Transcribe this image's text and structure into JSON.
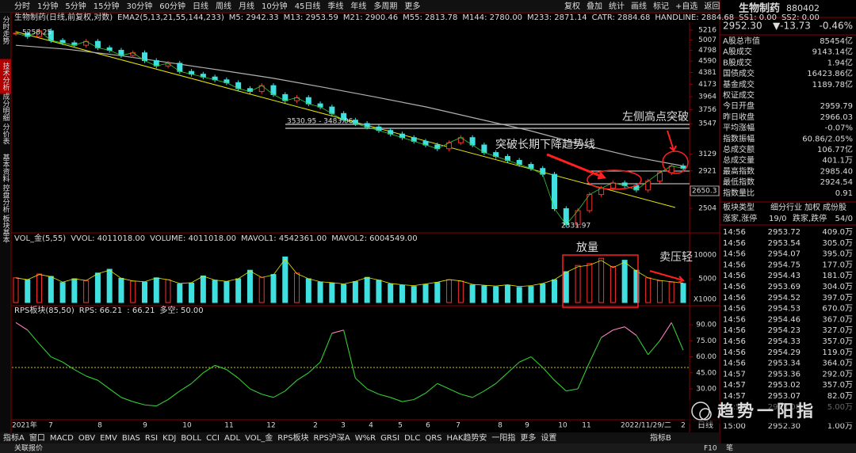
{
  "toolbar": {
    "periods": [
      "分时",
      "1分钟",
      "5分钟",
      "15分钟",
      "30分钟",
      "60分钟",
      "日线",
      "周线",
      "月线",
      "10分钟",
      "45日线",
      "季线",
      "年线",
      "多周期",
      "更多"
    ],
    "tools": [
      "复权",
      "叠加",
      "统计",
      "画线",
      "标记",
      "+自选",
      "返回"
    ]
  },
  "side_tabs": [
    "分时走势",
    "技术分析",
    "成分明细",
    "分价表",
    "基本资料",
    "控盘分析",
    "板块基本"
  ],
  "chart": {
    "header": {
      "name": "生物制药(日线,前复权,对数)",
      "indicator": "EMA2(5,13,21,55,144,233)",
      "params": [
        {
          "text": "M5: 2942.33",
          "color": "#ffffff"
        },
        {
          "text": "M13: 2953.59",
          "color": "#ffff00"
        },
        {
          "text": "M21: 2900.46",
          "color": "#ff66cc"
        },
        {
          "text": "M55: 2813.78",
          "color": "#33cc33"
        },
        {
          "text": "M144: 2780.00",
          "color": "#bbbbbb"
        },
        {
          "text": "M233: 2871.14",
          "color": "#3366ff"
        },
        {
          "text": "CATR: 2884.68",
          "color": "#ffffff"
        },
        {
          "text": "HANDLINE: 2884.68",
          "color": "#33cc33"
        },
        {
          "text": "SS1: 0.00",
          "color": "#ff66cc"
        },
        {
          "text": "SS2: 0.00",
          "color": "#33cc33"
        }
      ]
    },
    "price": {
      "log_scale": true,
      "ticks": [
        5216,
        5007,
        4798,
        4590,
        4381,
        4173,
        3964,
        3756,
        3547,
        3129,
        2921,
        2504
      ],
      "current_label": "2650.3",
      "close": [
        5150,
        5080,
        5200,
        5000,
        4950,
        4900,
        4980,
        4850,
        4800,
        4700,
        4750,
        4600,
        4500,
        4550,
        4400,
        4350,
        4300,
        4250,
        4200,
        4100,
        4050,
        4150,
        4000,
        3900,
        3950,
        3850,
        3800,
        3700,
        3600,
        3550,
        3500,
        3450,
        3400,
        3350,
        3300,
        3250,
        3200,
        3280,
        3350,
        3250,
        3150,
        3100,
        3050,
        3000,
        2950,
        2880,
        2500,
        2340,
        2480,
        2650,
        2720,
        2780,
        2750,
        2700,
        2800,
        2900,
        2980,
        2952
      ],
      "ma_gray": [
        4900,
        4820,
        4700,
        4560,
        4420,
        4280,
        4120,
        3960,
        3800,
        3620,
        3450,
        3260,
        3100,
        2980
      ]
    },
    "annotations": {
      "high": "5258.25",
      "range": "3530.95 - 3483.06",
      "low": "2331.97",
      "breakout_left": "左侧高点突破",
      "breakout_trend": "突破长期下降趋势线",
      "volume_up": "放量",
      "sell_light": "卖压轻"
    },
    "volume": {
      "header": [
        {
          "text": "VOL_金(5,55)",
          "color": "#dddddd"
        },
        {
          "text": "VVOL: 4011018.00",
          "color": "#dddddd"
        },
        {
          "text": "VOLUME: 4011018.00",
          "color": "#ffff00"
        },
        {
          "text": "MAVOL1: 4542361.00",
          "color": "#ff66cc"
        },
        {
          "text": "MAVOL2: 6004549.00",
          "color": "#ff66cc"
        }
      ],
      "ticks": [
        10000,
        5000
      ],
      "unit": "X1000",
      "values": [
        5200,
        4800,
        6000,
        5500,
        4200,
        5000,
        4600,
        6200,
        7000,
        5100,
        4500,
        4300,
        5200,
        4800,
        3900,
        4100,
        5600,
        4700,
        4400,
        5000,
        6800,
        5300,
        5900,
        9600,
        6200,
        5000,
        4300,
        4100,
        3800,
        4400,
        5300,
        4700,
        3900,
        3600,
        3400,
        3800,
        4200,
        4800,
        4500,
        3700,
        3500,
        3300,
        3600,
        3200,
        3400,
        3900,
        4800,
        6500,
        7800,
        8200,
        9300,
        7600,
        8900,
        6800,
        5200,
        4600,
        4300,
        4011
      ]
    },
    "rps": {
      "header": [
        {
          "text": "RPS板块(85,50)",
          "color": "#dddddd"
        },
        {
          "text": "RPS: 66.21",
          "color": "#33cc33"
        },
        {
          "text": ": 66.21",
          "color": "#ff66cc"
        },
        {
          "text": "多空: 50.00",
          "color": "#cccc00"
        }
      ],
      "ticks": [
        {
          "value": 90,
          "label": "90.00"
        },
        {
          "value": 75,
          "label": "75.00"
        },
        {
          "value": 60,
          "label": "60.00"
        },
        {
          "value": 45,
          "label": "45.00"
        },
        {
          "value": 30,
          "label": "30.00"
        }
      ],
      "values": [
        92,
        85,
        72,
        60,
        55,
        48,
        42,
        38,
        30,
        22,
        18,
        15,
        14,
        20,
        28,
        35,
        45,
        52,
        48,
        40,
        30,
        25,
        22,
        28,
        38,
        45,
        55,
        82,
        85,
        40,
        30,
        25,
        22,
        18,
        20,
        26,
        35,
        30,
        25,
        22,
        28,
        35,
        45,
        55,
        60,
        50,
        38,
        28,
        30,
        55,
        78,
        85,
        88,
        80,
        62,
        75,
        92,
        66.21
      ]
    },
    "x_labels": [
      "2021年",
      "7",
      "8",
      "9",
      "10",
      "11",
      "12",
      "2",
      "3",
      "4",
      "5",
      "6",
      "7",
      "8",
      "9",
      "10",
      "11",
      "2022/11/29/二",
      "2"
    ]
  },
  "bottom_tabs": [
    "指标A",
    "窗口",
    "MACD",
    "OBV",
    "EMV",
    "BIAS",
    "RSI",
    "KDJ",
    "BOLL",
    "CCI",
    "ADL",
    "VOL_金",
    "RPS板块",
    "RPS沪深A",
    "W%R",
    "GRSI",
    "DLC",
    "QRS",
    "HAK趋势安",
    "一阳指",
    "更多",
    "设置"
  ],
  "bottom_right": [
    "指标B",
    "日线",
    "笔"
  ],
  "status": {
    "left": "关联报价",
    "right": "F10"
  },
  "quote": {
    "name": "生物制药",
    "code": "880402",
    "price": "2952.30",
    "change": "▼-13.73",
    "pct": "-0.46%"
  },
  "stats": [
    [
      "A股总市值",
      "85454亿"
    ],
    [
      "A股成交",
      "9143.14亿"
    ],
    [
      "B股成交",
      "1.94亿"
    ],
    [
      "国债成交",
      "16423.86亿"
    ],
    [
      "基金成交",
      "1189.78亿"
    ],
    [
      "权证成交",
      ""
    ],
    [
      "今日开盘",
      "2959.79"
    ],
    [
      "昨日收盘",
      "2966.03"
    ],
    [
      "平均涨幅",
      "-0.07%"
    ],
    [
      "指数振幅",
      "60.86/2.05%"
    ],
    [
      "总成交额",
      "106.77亿"
    ],
    [
      "总成交量",
      "401.1万"
    ],
    [
      "最高指数",
      "2985.40"
    ],
    [
      "最低指数",
      "2924.54"
    ],
    [
      "指数量比",
      "0.91"
    ]
  ],
  "sector": {
    "type": "板块类型",
    "links": [
      "细分行业",
      "加权",
      "成份股"
    ],
    "up_label": "涨家,涨停",
    "up": "19/0",
    "down_label": "跌家,跌停",
    "down": "54/0"
  },
  "trades": [
    [
      "14:56",
      "2953.72",
      "409.0万"
    ],
    [
      "14:56",
      "2953.54",
      "305.0万"
    ],
    [
      "14:56",
      "2954.07",
      "395.0万"
    ],
    [
      "14:56",
      "2954.75",
      "177.0万"
    ],
    [
      "14:56",
      "2954.43",
      "181.0万"
    ],
    [
      "14:56",
      "2953.69",
      "304.0万"
    ],
    [
      "14:56",
      "2954.52",
      "397.0万"
    ],
    [
      "14:56",
      "2954.53",
      "670.0万"
    ],
    [
      "14:56",
      "2954.46",
      "367.0万"
    ],
    [
      "14:56",
      "2954.23",
      "327.0万"
    ],
    [
      "14:56",
      "2954.33",
      "357.0万"
    ],
    [
      "14:56",
      "2954.29",
      "119.0万"
    ],
    [
      "14:56",
      "2953.34",
      "364.0万"
    ],
    [
      "14:57",
      "2953.36",
      "292.0万"
    ],
    [
      "14:57",
      "2953.02",
      "357.0万"
    ],
    [
      "14:57",
      "2953.07",
      "82.0万"
    ],
    [
      "14:57",
      "2953.08",
      "5.00万"
    ],
    [
      "15:00",
      "2952.30",
      "1.00万"
    ]
  ],
  "watermark": "趋势一阳指"
}
